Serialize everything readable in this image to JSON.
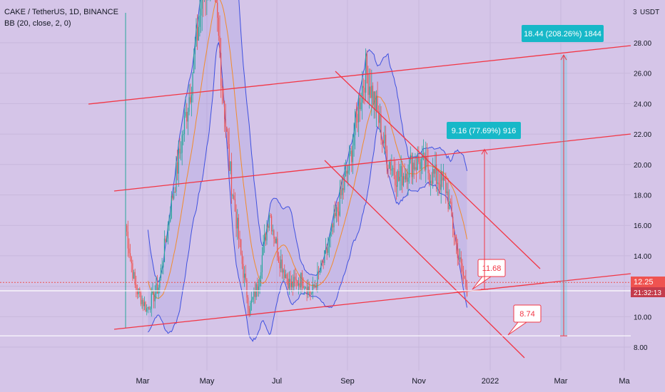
{
  "header": {
    "symbol": "CAKE / TetherUS, 1D, BINANCE",
    "indicator": "BB (20, close, 2, 0)"
  },
  "colors": {
    "background": "#d5c5e8",
    "bullish": "#26a69a",
    "bearish": "#ef5350",
    "band": "#3f51e0",
    "basis": "#f28b2c",
    "trendline": "#f23645",
    "callout": "#17b8c8",
    "last_price_badge": "#ef5350"
  },
  "chart_data": {
    "type": "candlestick",
    "title": "",
    "currency_label": "USDT",
    "x_ticks": [
      "Mar",
      "May",
      "Jul",
      "Sep",
      "Nov",
      "2022",
      "Mar",
      "Ma"
    ],
    "y_ticks": [
      8.0,
      10.0,
      12.0,
      14.0,
      16.0,
      18.0,
      20.0,
      22.0,
      24.0,
      26.0,
      28.0
    ],
    "y_top_label": "3",
    "ylim": [
      6.4,
      30.0
    ],
    "grid": true,
    "last_price": "12.25",
    "countdown": "21:32:13",
    "horizontal_levels": [
      11.7,
      8.74
    ],
    "targets": [
      {
        "label": "9.16 (77.69%) 916",
        "from": 11.8,
        "to": 21.0
      },
      {
        "label": "18.44 (208.26%) 1844",
        "from": 8.74,
        "to": 27.2
      }
    ],
    "price_labels": [
      "11.68",
      "8.74"
    ],
    "series_notes": "Daily candles of CAKE/USDT with Bollinger Bands (20, 2); rally Mar→Apr to ~30+, drop to ~10 in June, rebound to ~26.5 in late Aug, decline to ~11.7 in Dec 2021."
  }
}
